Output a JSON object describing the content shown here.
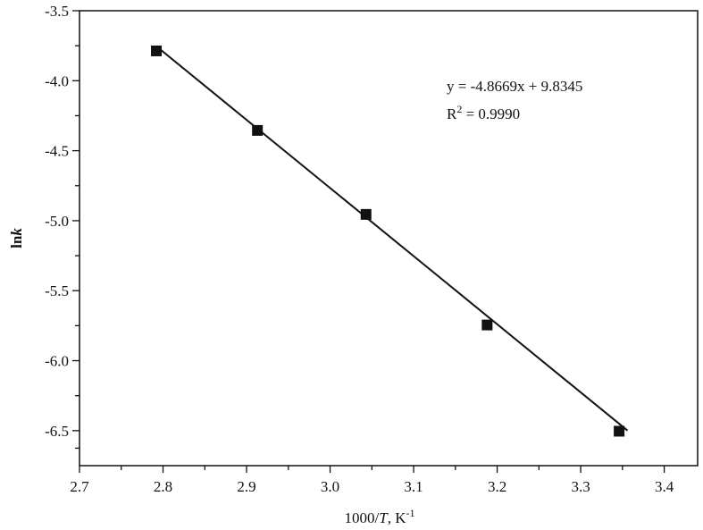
{
  "chart_data": {
    "type": "scatter",
    "xlabel": [
      "1000/",
      "T",
      ", K",
      "-1"
    ],
    "ylabel": [
      "ln",
      "k"
    ],
    "annotation": [
      "y = -4.8669x + 9.8345",
      "R",
      "2",
      " = 0.9990"
    ],
    "xlim": [
      2.7,
      3.44
    ],
    "ylim": [
      -6.75,
      -3.5
    ],
    "xticks": [
      2.7,
      2.8,
      2.9,
      {
        "value": 3.0,
        "label": "3.0"
      },
      3.1,
      3.2,
      3.3,
      3.4
    ],
    "yticks": [
      -3.5,
      {
        "value": -4.0,
        "label": "-4.0"
      },
      -4.5,
      {
        "value": -5.0,
        "label": "-5.0"
      },
      -5.5,
      {
        "value": -6.0,
        "label": "-6.0"
      },
      -6.5
    ],
    "series": [
      {
        "marker": "square",
        "color": "#111111",
        "x": [
          2.792,
          2.913,
          3.043,
          3.188,
          3.346
        ],
        "values": [
          -3.787,
          -4.355,
          -4.955,
          -5.745,
          -6.504
        ]
      },
      {
        "marker": "line",
        "color": "#111111",
        "x": [
          2.792,
          3.356
        ],
        "values": [
          -3.754,
          -6.499
        ]
      }
    ]
  }
}
